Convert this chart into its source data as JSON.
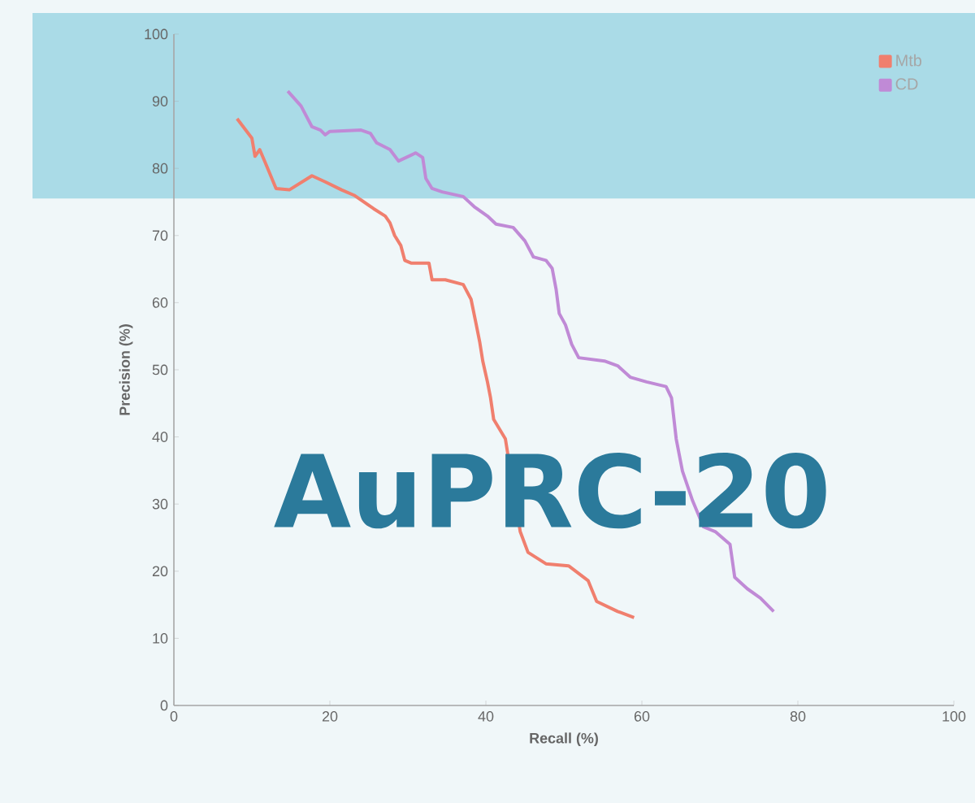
{
  "chart_data": {
    "type": "line",
    "xlabel": "Recall (%)",
    "ylabel": "Precision (%)",
    "xlim": [
      0,
      100
    ],
    "ylim": [
      0,
      100
    ],
    "xticks": [
      0,
      20,
      40,
      60,
      80,
      100
    ],
    "yticks": [
      0,
      10,
      20,
      30,
      40,
      50,
      60,
      70,
      80,
      90,
      100
    ],
    "legend": "top right",
    "grid": false,
    "annotations": [
      "AuPRC-20"
    ],
    "bands": [
      {
        "axis": "y",
        "from": 75.5,
        "to": 100,
        "color": "#aadbe7"
      }
    ],
    "series": [
      {
        "name": "Mtb",
        "color": "#f07f6e",
        "x": [
          8.1,
          10,
          10.4,
          11,
          11.7,
          13.1,
          14.8,
          17.7,
          19.4,
          21.5,
          23.1,
          25.6,
          27.1,
          27.7,
          28.3,
          29.1,
          29.6,
          30.4,
          31.7,
          32.7,
          33.1,
          34.8,
          37.1,
          38.1,
          38.7,
          39.2,
          39.6,
          40.2,
          40.6,
          41,
          42.5,
          44.4,
          45.4,
          47.7,
          50.6,
          53.1,
          54.2,
          56.9,
          59
        ],
        "values": [
          87.4,
          84.5,
          81.8,
          82.8,
          80.9,
          77,
          76.8,
          78.9,
          78,
          76.8,
          76,
          74,
          72.9,
          71.9,
          70,
          68.5,
          66.3,
          65.9,
          65.9,
          65.9,
          63.4,
          63.4,
          62.7,
          60.5,
          57.1,
          54.2,
          51.3,
          48.2,
          45.8,
          42.6,
          39.7,
          25.9,
          22.8,
          21.1,
          20.8,
          18.6,
          15.5,
          14,
          13.1
        ]
      },
      {
        "name": "CD",
        "color": "#c08ad6",
        "x": [
          14.6,
          16.3,
          17.7,
          18.8,
          19.4,
          20,
          24,
          25.2,
          26,
          27.7,
          28.8,
          31,
          31.9,
          32.3,
          33.1,
          34.4,
          37.1,
          38.5,
          40.2,
          41.3,
          43.5,
          45,
          46.1,
          47.7,
          48.5,
          49,
          49.4,
          50.2,
          51,
          51.9,
          55.2,
          56.9,
          58.5,
          60.6,
          63.1,
          63.8,
          64.4,
          65.2,
          66.5,
          67.9,
          69.4,
          71.3,
          71.9,
          73.5,
          75.2,
          76.9
        ],
        "values": [
          91.5,
          89.3,
          86.2,
          85.7,
          85,
          85.5,
          85.7,
          85.2,
          83.8,
          82.8,
          81.1,
          82.3,
          81.6,
          78.5,
          77,
          76.5,
          75.8,
          74.3,
          72.9,
          71.7,
          71.2,
          69.2,
          66.8,
          66.3,
          65.1,
          62,
          58.4,
          56.7,
          53.8,
          51.8,
          51.3,
          50.6,
          48.9,
          48.2,
          47.5,
          45.8,
          39.7,
          34.9,
          30.5,
          26.6,
          25.9,
          24,
          19.1,
          17.4,
          16,
          14
        ]
      }
    ]
  }
}
